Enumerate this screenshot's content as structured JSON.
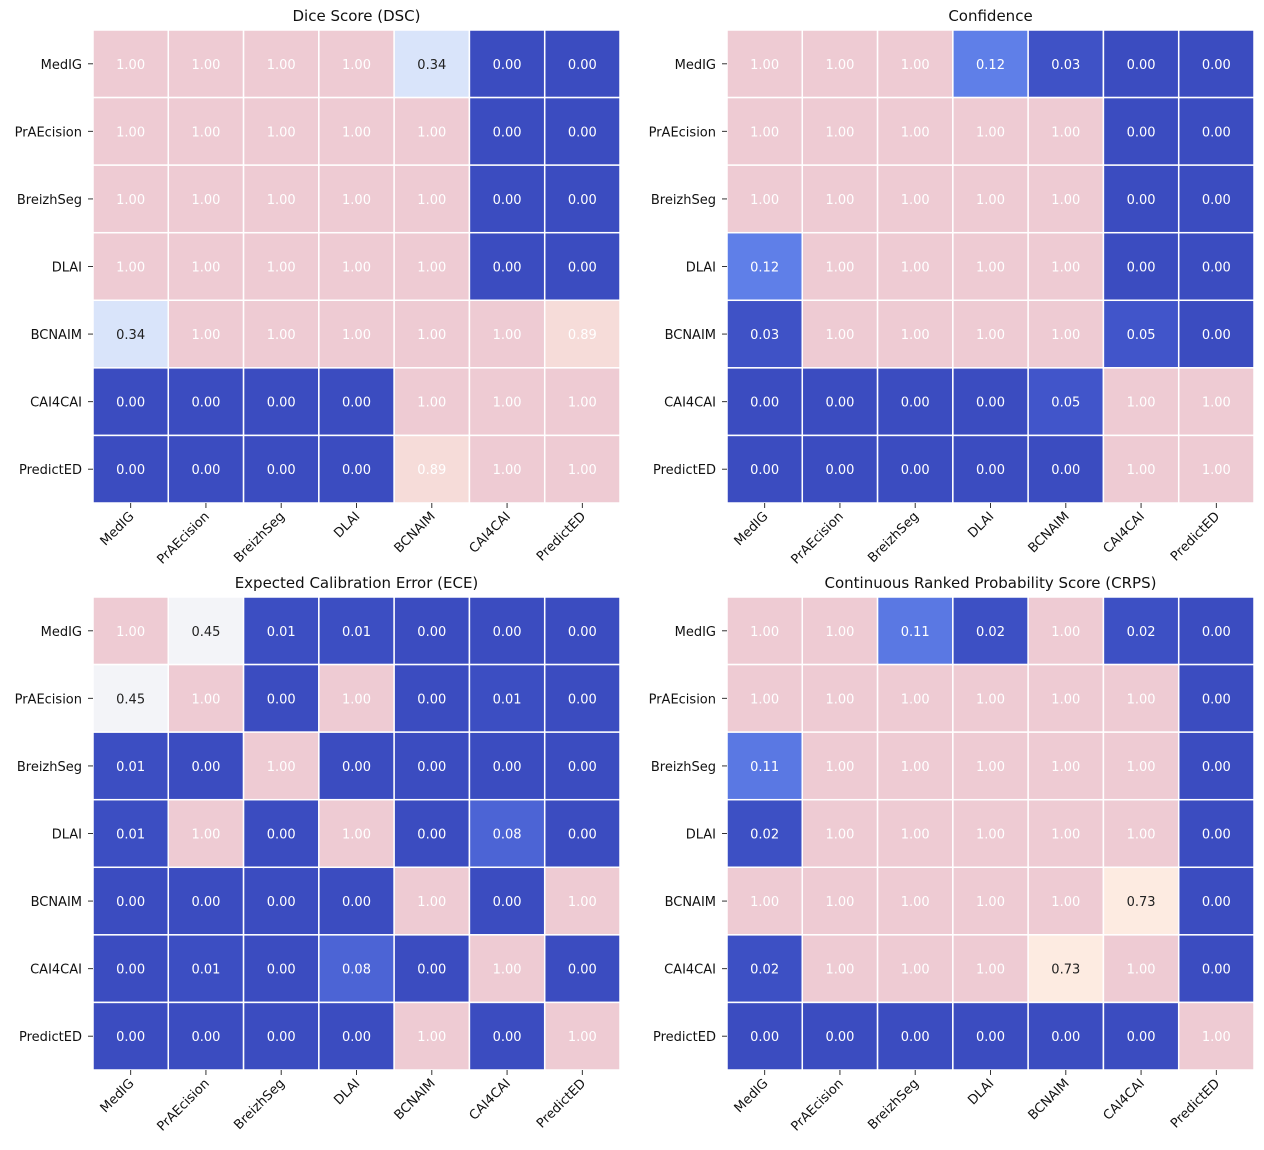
{
  "figure": {
    "labels": [
      "MedIG",
      "PrAEcision",
      "BreizhSeg",
      "DLAI",
      "BCNAIM",
      "CAI4CAI",
      "PredictED"
    ],
    "colors": {
      "high": "#eecbd3",
      "low": "#3b4cc0",
      "mid": "#f4f6fb",
      "background": "#ffffff",
      "text_dark": "#222222",
      "text_light": "#ffffff",
      "grid": "#ffffff"
    }
  },
  "chart_data": [
    {
      "type": "heatmap",
      "title": "Dice Score (DSC)",
      "xlabel": "",
      "ylabel": "",
      "x": [
        "MedIG",
        "PrAEcision",
        "BreizhSeg",
        "DLAI",
        "BCNAIM",
        "CAI4CAI",
        "PredictED"
      ],
      "y": [
        "MedIG",
        "PrAEcision",
        "BreizhSeg",
        "DLAI",
        "BCNAIM",
        "CAI4CAI",
        "PredictED"
      ],
      "values": [
        [
          1.0,
          1.0,
          1.0,
          1.0,
          0.34,
          0.0,
          0.0
        ],
        [
          1.0,
          1.0,
          1.0,
          1.0,
          1.0,
          0.0,
          0.0
        ],
        [
          1.0,
          1.0,
          1.0,
          1.0,
          1.0,
          0.0,
          0.0
        ],
        [
          1.0,
          1.0,
          1.0,
          1.0,
          1.0,
          0.0,
          0.0
        ],
        [
          0.34,
          1.0,
          1.0,
          1.0,
          1.0,
          1.0,
          0.89
        ],
        [
          0.0,
          0.0,
          0.0,
          0.0,
          1.0,
          1.0,
          1.0
        ],
        [
          0.0,
          0.0,
          0.0,
          0.0,
          0.89,
          1.0,
          1.0
        ]
      ],
      "value_format": "2 decimals",
      "grid": true
    },
    {
      "type": "heatmap",
      "title": "Confidence",
      "xlabel": "",
      "ylabel": "",
      "x": [
        "MedIG",
        "PrAEcision",
        "BreizhSeg",
        "DLAI",
        "BCNAIM",
        "CAI4CAI",
        "PredictED"
      ],
      "y": [
        "MedIG",
        "PrAEcision",
        "BreizhSeg",
        "DLAI",
        "BCNAIM",
        "CAI4CAI",
        "PredictED"
      ],
      "values": [
        [
          1.0,
          1.0,
          1.0,
          0.12,
          0.03,
          0.0,
          0.0
        ],
        [
          1.0,
          1.0,
          1.0,
          1.0,
          1.0,
          0.0,
          0.0
        ],
        [
          1.0,
          1.0,
          1.0,
          1.0,
          1.0,
          0.0,
          0.0
        ],
        [
          0.12,
          1.0,
          1.0,
          1.0,
          1.0,
          0.0,
          0.0
        ],
        [
          0.03,
          1.0,
          1.0,
          1.0,
          1.0,
          0.05,
          0.0
        ],
        [
          0.0,
          0.0,
          0.0,
          0.0,
          0.05,
          1.0,
          1.0
        ],
        [
          0.0,
          0.0,
          0.0,
          0.0,
          0.0,
          1.0,
          1.0
        ]
      ],
      "value_format": "2 decimals",
      "grid": true
    },
    {
      "type": "heatmap",
      "title": "Expected Calibration Error (ECE)",
      "xlabel": "",
      "ylabel": "",
      "x": [
        "MedIG",
        "PrAEcision",
        "BreizhSeg",
        "DLAI",
        "BCNAIM",
        "CAI4CAI",
        "PredictED"
      ],
      "y": [
        "MedIG",
        "PrAEcision",
        "BreizhSeg",
        "DLAI",
        "BCNAIM",
        "CAI4CAI",
        "PredictED"
      ],
      "values": [
        [
          1.0,
          0.45,
          0.01,
          0.01,
          0.0,
          0.0,
          0.0
        ],
        [
          0.45,
          1.0,
          0.0,
          1.0,
          0.0,
          0.01,
          0.0
        ],
        [
          0.01,
          0.0,
          1.0,
          0.0,
          0.0,
          0.0,
          0.0
        ],
        [
          0.01,
          1.0,
          0.0,
          1.0,
          0.0,
          0.08,
          0.0
        ],
        [
          0.0,
          0.0,
          0.0,
          0.0,
          1.0,
          0.0,
          1.0
        ],
        [
          0.0,
          0.01,
          0.0,
          0.08,
          0.0,
          1.0,
          0.0
        ],
        [
          0.0,
          0.0,
          0.0,
          0.0,
          1.0,
          0.0,
          1.0
        ]
      ],
      "value_format": "2 decimals",
      "grid": true
    },
    {
      "type": "heatmap",
      "title": "Continuous Ranked Probability Score (CRPS)",
      "xlabel": "",
      "ylabel": "",
      "x": [
        "MedIG",
        "PrAEcision",
        "BreizhSeg",
        "DLAI",
        "BCNAIM",
        "CAI4CAI",
        "PredictED"
      ],
      "y": [
        "MedIG",
        "PrAEcision",
        "BreizhSeg",
        "DLAI",
        "BCNAIM",
        "CAI4CAI",
        "PredictED"
      ],
      "values": [
        [
          1.0,
          1.0,
          0.11,
          0.02,
          1.0,
          0.02,
          0.0
        ],
        [
          1.0,
          1.0,
          1.0,
          1.0,
          1.0,
          1.0,
          0.0
        ],
        [
          0.11,
          1.0,
          1.0,
          1.0,
          1.0,
          1.0,
          0.0
        ],
        [
          0.02,
          1.0,
          1.0,
          1.0,
          1.0,
          1.0,
          0.0
        ],
        [
          1.0,
          1.0,
          1.0,
          1.0,
          1.0,
          0.73,
          0.0
        ],
        [
          0.02,
          1.0,
          1.0,
          1.0,
          0.73,
          1.0,
          0.0
        ],
        [
          0.0,
          0.0,
          0.0,
          0.0,
          0.0,
          0.0,
          1.0
        ]
      ],
      "value_format": "2 decimals",
      "grid": true
    }
  ]
}
